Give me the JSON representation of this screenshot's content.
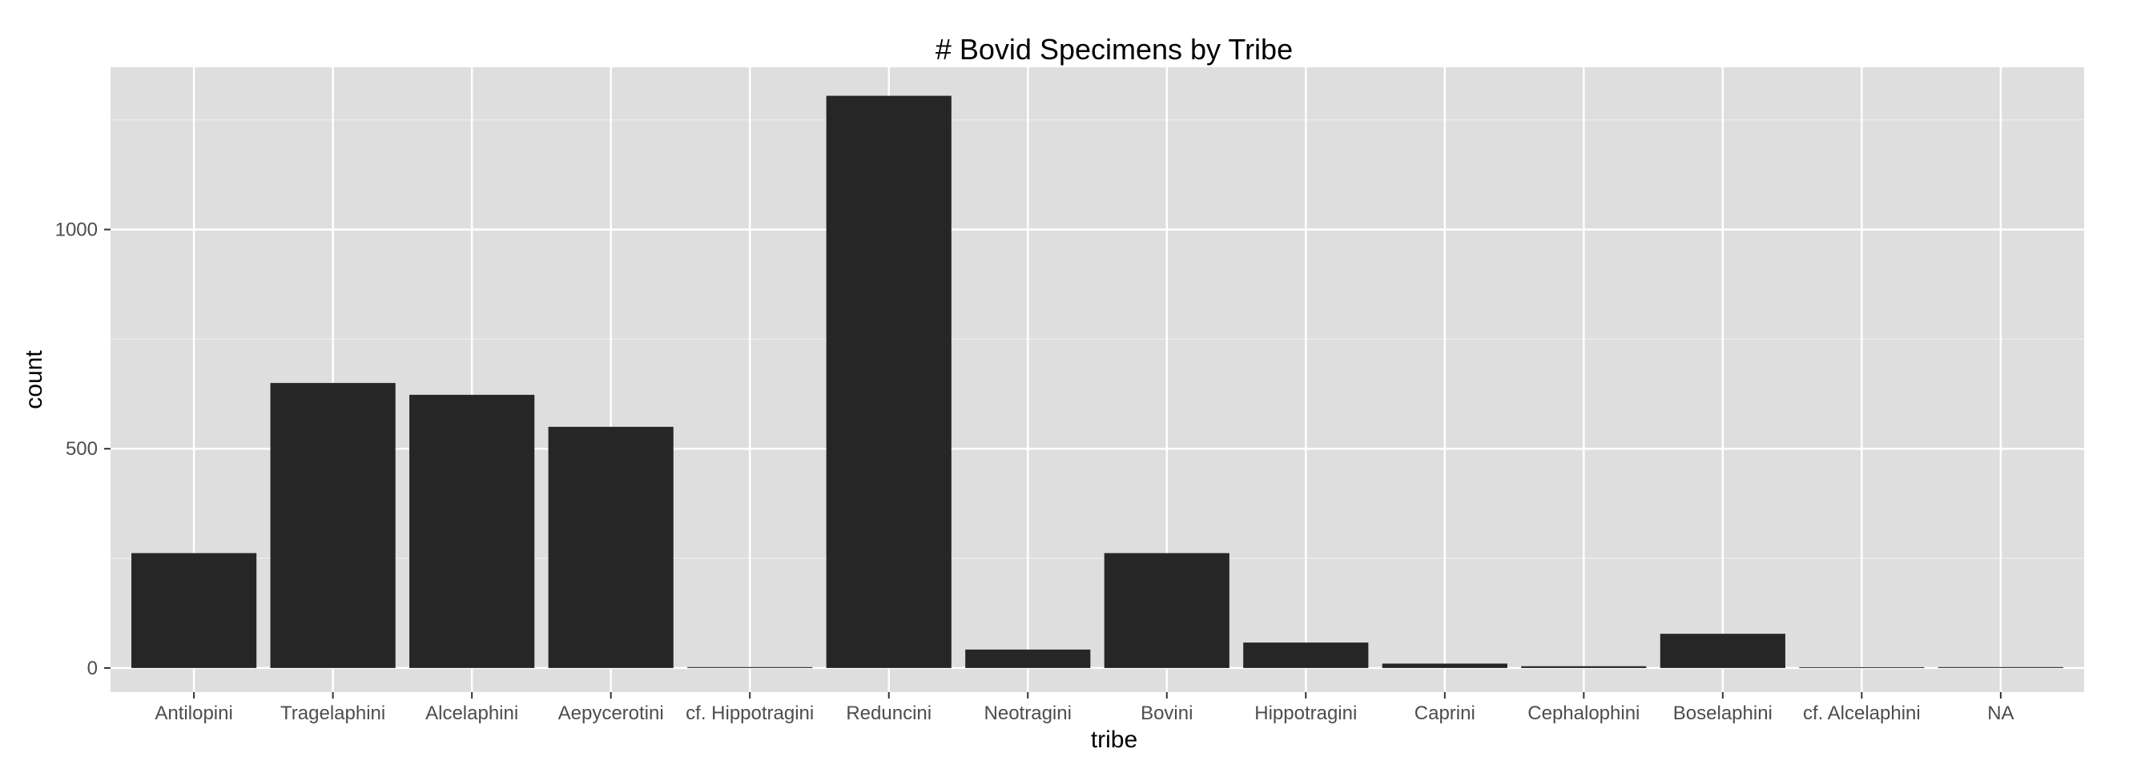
{
  "chart_data": {
    "type": "bar",
    "title": "# Bovid Specimens by Tribe",
    "xlabel": "tribe",
    "ylabel": "count",
    "categories": [
      "Antilopini",
      "Tragelaphini",
      "Alcelaphini",
      "Aepycerotini",
      "cf. Hippotragini",
      "Reduncini",
      "Neotragini",
      "Bovini",
      "Hippotragini",
      "Caprini",
      "Cephalophini",
      "Boselaphini",
      "cf. Alcelaphini",
      "NA"
    ],
    "values": [
      262,
      650,
      623,
      550,
      2,
      1305,
      42,
      262,
      58,
      10,
      4,
      78,
      1,
      2
    ],
    "ylim": [
      -55,
      1370
    ],
    "yticks": [
      0,
      500,
      1000
    ],
    "ytick_labels": [
      "0",
      "500",
      "1000"
    ],
    "grid": true,
    "legend": "none",
    "colors": {
      "bar": "#262626",
      "panel": "#dedede",
      "grid_major": "#ffffff",
      "grid_minor": "#ebebeb",
      "tick_text": "#4d4d4d"
    }
  }
}
